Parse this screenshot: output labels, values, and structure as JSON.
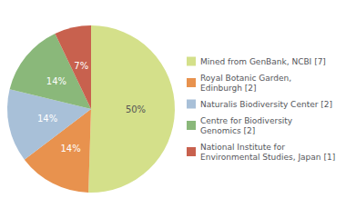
{
  "chart_data": {
    "type": "pie",
    "categories": [
      "Mined from GenBank, NCBI [7]",
      "Royal Botanic Garden,\nEdinburgh [2]",
      "Naturalis Biodiversity Center [2]",
      "Centre for Biodiversity\nGenomics [2]",
      "National Institute for\nEnvironmental Studies, Japan [1]"
    ],
    "values": [
      50,
      14,
      14,
      14,
      7
    ],
    "value_labels": [
      "50%",
      "14%",
      "14%",
      "14%",
      "7%"
    ],
    "colors": [
      "#d4e08a",
      "#e8924e",
      "#a8c0d8",
      "#8ab87a",
      "#c8614e"
    ],
    "data_labels": true,
    "legend": "right"
  }
}
